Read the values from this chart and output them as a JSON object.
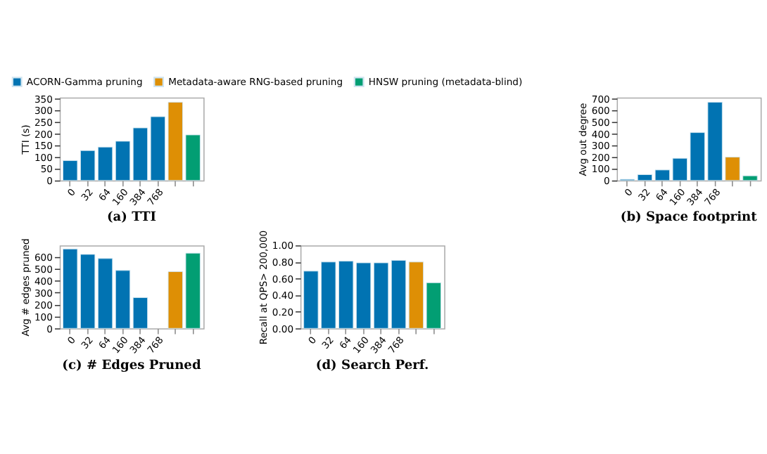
{
  "chart_data": [
    {
      "type": "bar",
      "title": "(a) TTI",
      "ylabel": "TTI (s)",
      "categories": [
        "0",
        "32",
        "64",
        "160",
        "384",
        "768",
        null,
        null
      ],
      "ylim": [
        0,
        355
      ],
      "yticks": [
        0,
        50,
        100,
        150,
        200,
        250,
        300,
        350
      ],
      "grid": false,
      "legend": "top",
      "series": [
        {
          "name": "ACORN-Gamma pruning",
          "color": "#0173b2",
          "values": [
            85,
            128,
            143,
            168,
            225,
            273,
            null,
            null
          ]
        },
        {
          "name": "Metadata-aware RNG-based pruning",
          "color": "#de8f05",
          "values": [
            null,
            null,
            null,
            null,
            null,
            null,
            335,
            null
          ]
        },
        {
          "name": "HNSW pruning (metadata-blind)",
          "color": "#029e73",
          "values": [
            null,
            null,
            null,
            null,
            null,
            null,
            null,
            195
          ]
        }
      ]
    },
    {
      "type": "bar",
      "title": "(b) Space footprint",
      "ylabel": "Avg out degree",
      "categories": [
        "0",
        "32",
        "64",
        "160",
        "384",
        "768",
        null,
        null
      ],
      "ylim": [
        0,
        710
      ],
      "yticks": [
        0,
        100,
        200,
        300,
        400,
        500,
        600,
        700
      ],
      "grid": false,
      "series": [
        {
          "color": "#0173b2",
          "values": [
            10,
            50,
            90,
            190,
            410,
            670,
            null,
            null
          ]
        },
        {
          "color": "#de8f05",
          "values": [
            null,
            null,
            null,
            null,
            null,
            null,
            200,
            null
          ]
        },
        {
          "color": "#029e73",
          "values": [
            null,
            null,
            null,
            null,
            null,
            null,
            null,
            40
          ]
        }
      ]
    },
    {
      "type": "bar",
      "title": "(c) # Edges Pruned",
      "ylabel": "Avg # edges pruned",
      "categories": [
        "0",
        "32",
        "64",
        "160",
        "384",
        "768",
        null,
        null
      ],
      "ylim": [
        0,
        695
      ],
      "yticks": [
        0,
        100,
        200,
        300,
        400,
        500,
        600
      ],
      "grid": false,
      "series": [
        {
          "color": "#0173b2",
          "values": [
            665,
            620,
            585,
            485,
            258,
            null,
            null,
            null
          ]
        },
        {
          "color": "#de8f05",
          "values": [
            null,
            null,
            null,
            null,
            null,
            null,
            475,
            null
          ]
        },
        {
          "color": "#029e73",
          "values": [
            null,
            null,
            null,
            null,
            null,
            null,
            null,
            630
          ]
        }
      ]
    },
    {
      "type": "bar",
      "title": "(d) Search Perf.",
      "ylabel": "Recall at QPS> 200,000",
      "categories": [
        "0",
        "32",
        "64",
        "160",
        "384",
        "768",
        null,
        null
      ],
      "ylim": [
        0,
        1
      ],
      "yticks": [
        {
          "value": 0,
          "label": "0.00"
        },
        {
          "value": 0.2,
          "label": "0.20"
        },
        {
          "value": 0.4,
          "label": "0.40"
        },
        {
          "value": 0.6,
          "label": "0.60"
        },
        {
          "value": 0.8,
          "label": "0.80"
        },
        {
          "value": 1,
          "label": "1.00"
        }
      ],
      "grid": false,
      "series": [
        {
          "color": "#0173b2",
          "values": [
            0.69,
            0.8,
            0.81,
            0.79,
            0.79,
            0.82,
            null,
            null
          ]
        },
        {
          "color": "#de8f05",
          "values": [
            null,
            null,
            null,
            null,
            null,
            null,
            0.8,
            null
          ]
        },
        {
          "color": "#029e73",
          "values": [
            null,
            null,
            null,
            null,
            null,
            null,
            null,
            0.55
          ]
        }
      ]
    }
  ]
}
